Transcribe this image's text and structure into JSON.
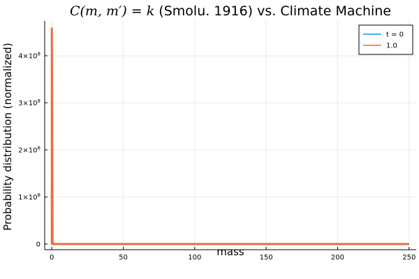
{
  "chart_data": {
    "type": "line",
    "title_math": "C(m, m′) = k",
    "title_text": " (Smolu. 1916) vs. Climate Machine",
    "xlabel": "mass",
    "ylabel": "Probability distribution (normalized)",
    "xlim": [
      -5,
      255
    ],
    "ylim": [
      -12000000,
      474000000
    ],
    "x_ticks": [
      0,
      50,
      100,
      150,
      200,
      250
    ],
    "x_tick_labels": [
      "0",
      "50",
      "100",
      "150",
      "200",
      "250"
    ],
    "y_ticks": [
      0,
      100000000,
      200000000,
      300000000,
      400000000
    ],
    "y_tick_labels": [
      {
        "mant": "0",
        "exp": ""
      },
      {
        "mant": "1×10",
        "exp": "8"
      },
      {
        "mant": "2×10",
        "exp": "8"
      },
      {
        "mant": "3×10",
        "exp": "8"
      },
      {
        "mant": "4×10",
        "exp": "8"
      }
    ],
    "grid": true,
    "legend_position": "top-right",
    "series": [
      {
        "name": "t = 0",
        "color": "#009af9",
        "x": [
          0,
          0,
          0.5,
          1,
          250
        ],
        "y": [
          0,
          460000000,
          0,
          0,
          0
        ]
      },
      {
        "name": "1.0",
        "color": "#e26f46",
        "x": [
          0,
          0,
          0.5,
          1,
          250
        ],
        "y": [
          0,
          460000000,
          0,
          0,
          0
        ]
      }
    ]
  }
}
